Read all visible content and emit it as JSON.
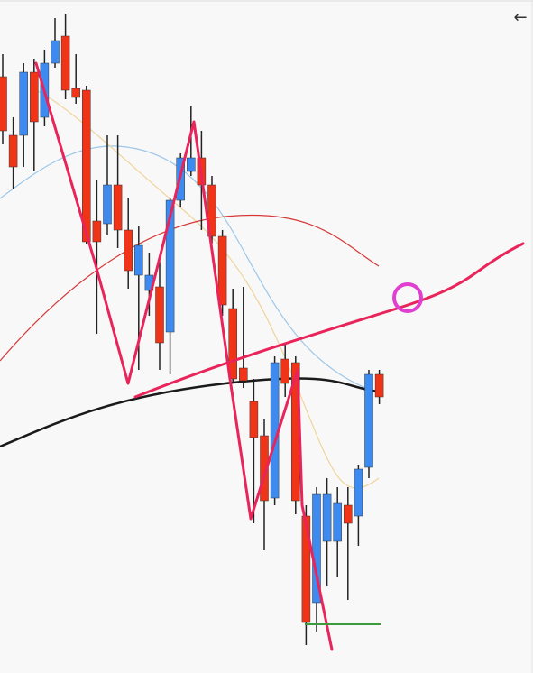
{
  "nav": {
    "back": "←"
  },
  "chart_data": {
    "type": "candlestick",
    "up_color": "#3d8bf0",
    "down_color": "#f03418",
    "ylim": [
      0,
      746
    ],
    "open": [
      661,
      596,
      596,
      666,
      616,
      676,
      706,
      648,
      646,
      501,
      498,
      541,
      491,
      441,
      424,
      428,
      378,
      524,
      556,
      571,
      541,
      484,
      404,
      338,
      301,
      263,
      194,
      348,
      344,
      174,
      78,
      146,
      146,
      186,
      174,
      228,
      331
    ],
    "high": [
      686,
      616,
      676,
      681,
      691,
      726,
      731,
      686,
      651,
      546,
      596,
      596,
      526,
      496,
      466,
      456,
      526,
      576,
      628,
      601,
      551,
      491,
      426,
      428,
      326,
      281,
      351,
      366,
      351,
      186,
      206,
      216,
      206,
      206,
      231,
      336,
      336
    ],
    "low": [
      586,
      536,
      561,
      556,
      606,
      671,
      636,
      631,
      476,
      376,
      486,
      471,
      426,
      336,
      396,
      336,
      331,
      516,
      551,
      491,
      476,
      396,
      321,
      316,
      166,
      136,
      186,
      306,
      176,
      31,
      46,
      96,
      106,
      81,
      141,
      216,
      298
    ],
    "close": [
      601,
      561,
      666,
      611,
      676,
      701,
      646,
      638,
      478,
      478,
      541,
      491,
      446,
      474,
      441,
      366,
      524,
      571,
      571,
      541,
      484,
      408,
      326,
      324,
      261,
      191,
      344,
      321,
      191,
      56,
      198,
      198,
      188,
      166,
      226,
      331,
      306
    ]
  }
}
